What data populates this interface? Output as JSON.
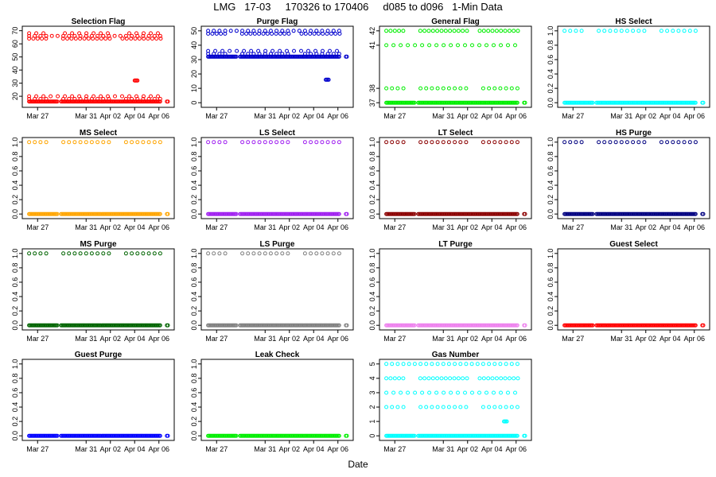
{
  "page_title": "LMG   17-03     170326 to 170406     d085 to d096   1-Min Data",
  "x_axis_label": "Date",
  "date_ticks": [
    "Mar 27",
    "Mar 31",
    "Apr 02",
    "Apr 04",
    "Apr 06"
  ],
  "chart_data": [
    {
      "type": "scatter",
      "title": "Selection Flag",
      "color": "#ff0000",
      "xlim": [
        "2017-03-26",
        "2017-04-07"
      ],
      "ylim": [
        14,
        71
      ],
      "yticks": [
        "20",
        "30",
        "40",
        "50",
        "60",
        "70"
      ],
      "levels": [
        16,
        18,
        20,
        64,
        66,
        68
      ],
      "spike": {
        "date": "2017-04-04",
        "value": 32
      }
    },
    {
      "type": "scatter",
      "title": "Purge Flag",
      "color": "#0000cc",
      "xlim": [
        "2017-03-26",
        "2017-04-07"
      ],
      "ylim": [
        -1,
        51
      ],
      "yticks": [
        "0",
        "10",
        "20",
        "30",
        "40",
        "50"
      ],
      "levels": [
        32,
        34,
        36,
        48,
        50
      ],
      "spike": {
        "date": "2017-04-05",
        "value": 16
      }
    },
    {
      "type": "scatter",
      "title": "General Flag",
      "color": "#00ee00",
      "xlim": [
        "2017-03-26",
        "2017-04-07"
      ],
      "ylim": [
        36.9,
        42.1
      ],
      "yticks": [
        "37",
        "38",
        "",
        "41",
        "42"
      ],
      "levels": [
        37,
        38,
        41,
        42
      ]
    },
    {
      "type": "scatter",
      "title": "HS Select",
      "color": "#00ffff",
      "xlim": [
        "2017-03-26",
        "2017-04-07"
      ],
      "ylim": [
        -0.02,
        1.02
      ],
      "yticks": [
        "0.0",
        "0.2",
        "0.4",
        "0.6",
        "0.8",
        "1.0"
      ],
      "levels": [
        0,
        1
      ]
    },
    {
      "type": "scatter",
      "title": "MS Select",
      "color": "#ffa500",
      "xlim": [
        "2017-03-26",
        "2017-04-07"
      ],
      "ylim": [
        -0.02,
        1.02
      ],
      "yticks": [
        "0.0",
        "0.2",
        "0.4",
        "0.6",
        "0.8",
        "1.0"
      ],
      "levels": [
        0,
        1
      ]
    },
    {
      "type": "scatter",
      "title": "LS Select",
      "color": "#a020f0",
      "xlim": [
        "2017-03-26",
        "2017-04-07"
      ],
      "ylim": [
        -0.02,
        1.02
      ],
      "yticks": [
        "0.0",
        "0.2",
        "0.4",
        "0.6",
        "0.8",
        "1.0"
      ],
      "levels": [
        0,
        1
      ]
    },
    {
      "type": "scatter",
      "title": "LT Select",
      "color": "#8b0000",
      "xlim": [
        "2017-03-26",
        "2017-04-07"
      ],
      "ylim": [
        -0.02,
        1.02
      ],
      "yticks": [
        "0.0",
        "0.2",
        "0.4",
        "0.6",
        "0.8",
        "1.0"
      ],
      "levels": [
        0,
        1
      ]
    },
    {
      "type": "scatter",
      "title": "HS Purge",
      "color": "#000080",
      "xlim": [
        "2017-03-26",
        "2017-04-07"
      ],
      "ylim": [
        -0.02,
        1.02
      ],
      "yticks": [
        "0.0",
        "0.2",
        "0.4",
        "0.6",
        "0.8",
        "1.0"
      ],
      "levels": [
        0,
        1
      ]
    },
    {
      "type": "scatter",
      "title": "MS Purge",
      "color": "#006400",
      "xlim": [
        "2017-03-26",
        "2017-04-07"
      ],
      "ylim": [
        -0.02,
        1.02
      ],
      "yticks": [
        "0.0",
        "0.2",
        "0.4",
        "0.6",
        "0.8",
        "1.0"
      ],
      "levels": [
        0,
        1
      ]
    },
    {
      "type": "scatter",
      "title": "LS Purge",
      "color": "#808080",
      "xlim": [
        "2017-03-26",
        "2017-04-07"
      ],
      "ylim": [
        -0.02,
        1.02
      ],
      "yticks": [
        "0.0",
        "0.2",
        "0.4",
        "0.6",
        "0.8",
        "1.0"
      ],
      "levels": [
        0,
        1
      ]
    },
    {
      "type": "scatter",
      "title": "LT Purge",
      "color": "#ee82ee",
      "xlim": [
        "2017-03-26",
        "2017-04-07"
      ],
      "ylim": [
        -0.02,
        1.02
      ],
      "yticks": [
        "0.0",
        "0.2",
        "0.4",
        "0.6",
        "0.8",
        "1.0"
      ],
      "levels": [
        0
      ]
    },
    {
      "type": "scatter",
      "title": "Guest Select",
      "color": "#ff0000",
      "xlim": [
        "2017-03-26",
        "2017-04-07"
      ],
      "ylim": [
        -0.02,
        1.02
      ],
      "yticks": [
        "0.0",
        "0.2",
        "0.4",
        "0.6",
        "0.8",
        "1.0"
      ],
      "levels": [
        0
      ]
    },
    {
      "type": "scatter",
      "title": "Guest Purge",
      "color": "#0000ff",
      "xlim": [
        "2017-03-26",
        "2017-04-07"
      ],
      "ylim": [
        -0.02,
        1.02
      ],
      "yticks": [
        "0.0",
        "0.2",
        "0.4",
        "0.6",
        "0.8",
        "1.0"
      ],
      "levels": [
        0
      ]
    },
    {
      "type": "scatter",
      "title": "Leak Check",
      "color": "#00ee00",
      "xlim": [
        "2017-03-26",
        "2017-04-07"
      ],
      "ylim": [
        -0.02,
        1.02
      ],
      "yticks": [
        "0.0",
        "0.2",
        "0.4",
        "0.6",
        "0.8",
        "1.0"
      ],
      "levels": [
        0
      ]
    },
    {
      "type": "scatter",
      "title": "Gas Number",
      "color": "#00ffff",
      "xlim": [
        "2017-03-26",
        "2017-04-07"
      ],
      "ylim": [
        -0.1,
        5.1
      ],
      "yticks": [
        "0",
        "1",
        "2",
        "3",
        "4",
        "5"
      ],
      "levels": [
        0,
        2,
        3,
        4,
        5
      ],
      "spike": {
        "date": "2017-04-05",
        "value": 1
      }
    }
  ]
}
